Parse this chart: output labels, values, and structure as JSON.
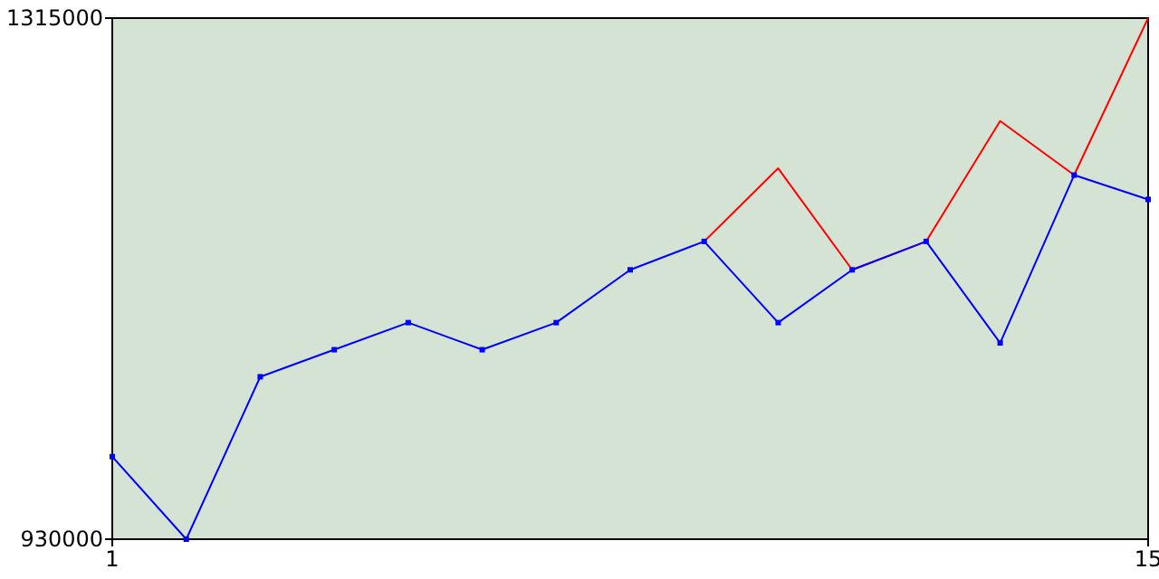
{
  "chart_data": {
    "type": "line",
    "x": [
      1,
      2,
      3,
      4,
      5,
      6,
      7,
      8,
      9,
      10,
      11,
      12,
      13,
      14,
      15
    ],
    "series": [
      {
        "color": "#ff0000",
        "marker": "none",
        "values": [
          null,
          null,
          null,
          null,
          null,
          null,
          null,
          null,
          1150000,
          1204000,
          1129000,
          1150000,
          1239000,
          1199000,
          1315000
        ]
      },
      {
        "color": "#0000ff",
        "marker": "square",
        "values": [
          991000,
          930000,
          1050000,
          1070000,
          1090000,
          1070000,
          1090000,
          1129000,
          1150000,
          1090000,
          1129000,
          1150000,
          1075000,
          1199000,
          1181000
        ]
      }
    ],
    "xlim": [
      1,
      15
    ],
    "xticks": [
      1,
      15
    ],
    "ylim": [
      930000,
      1315000
    ],
    "yticks": [
      930000,
      1315000
    ],
    "grid": false
  }
}
